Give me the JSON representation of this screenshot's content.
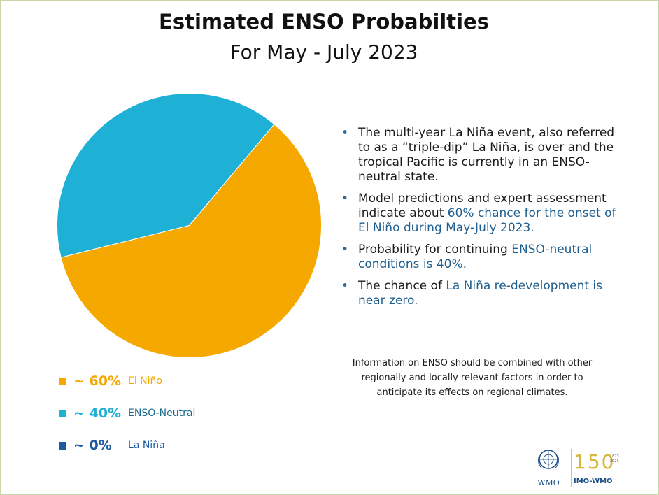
{
  "title": "Estimated ENSO Probabilties",
  "subtitle": "For May - July 2023",
  "colors": {
    "el_nino": "#f5a800",
    "enso_neutral": "#1fb0d6",
    "la_nina": "#1d5aa0",
    "highlight_text": "#1f5f8f",
    "border": "#c9d6a8"
  },
  "chart_data": {
    "type": "pie",
    "categories": [
      "El Niño",
      "ENSO-Neutral",
      "La Niña"
    ],
    "values": [
      60,
      40,
      0
    ],
    "value_labels": [
      "~ 60%",
      "~ 40%",
      "~ 0%"
    ],
    "colors": [
      "#f5a800",
      "#1fb0d6",
      "#1d5aa0"
    ],
    "legend_position": "bottom-left"
  },
  "bullets": [
    {
      "text": "The multi-year La Niña event, also referred to as a “triple-dip” La Niña, is over and the tropical Pacific is currently in an ENSO-neutral state.",
      "highlight": ""
    },
    {
      "text": "Model predictions and expert assessment indicate about ",
      "highlight": "60% chance for the onset of El Niño during May-July 2023."
    },
    {
      "text": "Probability for continuing ",
      "highlight": "ENSO-neutral conditions is 40%."
    },
    {
      "text": "The chance of ",
      "highlight": "La Niña re-development is near zero."
    }
  ],
  "note": "Information on ENSO should be combined with other regionally and locally relevant factors in order to anticipate its effects on regional climates.",
  "logos": {
    "wmo_text": "WMO",
    "imo_number": "150",
    "imo_dates": "1873\n2023",
    "imo_text": "IMO-WMO",
    "wmo_icon": "wmo-emblem-icon",
    "imo_icon": "imo-150-icon"
  }
}
